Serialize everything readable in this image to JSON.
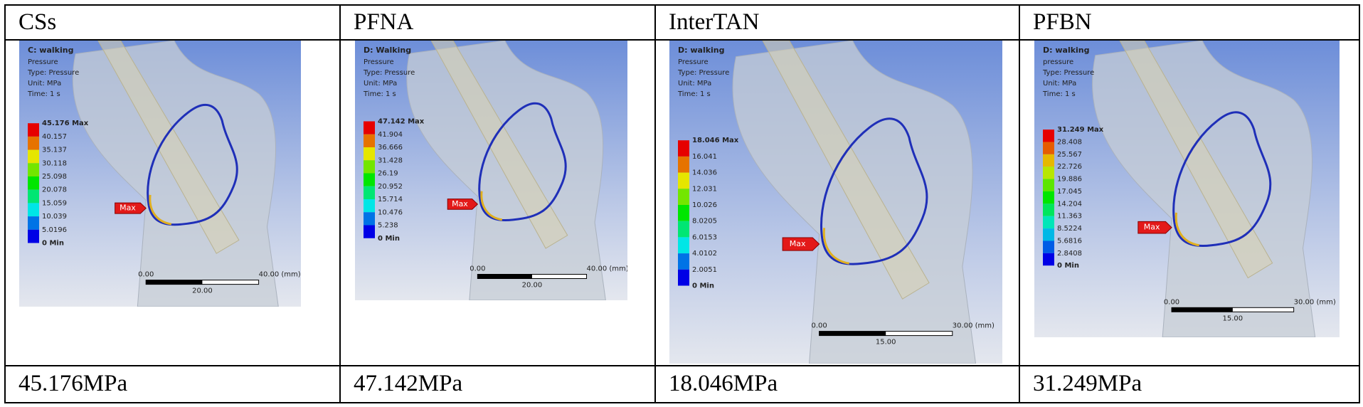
{
  "table": {
    "header": [
      "CSs",
      "PFNA",
      "InterTAN",
      "PFBN"
    ],
    "panels": [
      {
        "title": "C: walking",
        "lines": [
          "Pressure",
          "Type: Pressure",
          "Unit: MPa",
          "Time: 1 s"
        ],
        "legend": [
          "45.176 Max",
          "40.157",
          "35.137",
          "30.118",
          "25.098",
          "20.078",
          "15.059",
          "10.039",
          "5.0196",
          "0 Min"
        ],
        "marker": "Max",
        "scale": [
          "0.00",
          "40.00 (mm)",
          "20.00"
        ]
      },
      {
        "title": "D: Walking",
        "lines": [
          "Pressure",
          "Type: Pressure",
          "Unit: MPa",
          "Time: 1 s"
        ],
        "legend": [
          "47.142 Max",
          "41.904",
          "36.666",
          "31.428",
          "26.19",
          "20.952",
          "15.714",
          "10.476",
          "5.238",
          "0 Min"
        ],
        "marker": "Max",
        "scale": [
          "0.00",
          "40.00 (mm)",
          "20.00"
        ]
      },
      {
        "title": "D: walking",
        "lines": [
          "Pressure",
          "Type: Pressure",
          "Unit: MPa",
          "Time: 1 s"
        ],
        "legend": [
          "18.046 Max",
          "16.041",
          "14.036",
          "12.031",
          "10.026",
          "8.0205",
          "6.0153",
          "4.0102",
          "2.0051",
          "0 Min"
        ],
        "marker": "Max",
        "scale": [
          "0.00",
          "30.00 (mm)",
          "15.00"
        ]
      },
      {
        "title": "D: walking",
        "lines": [
          "pressure",
          "Type: Pressure",
          "Unit: MPa",
          "Time: 1 s"
        ],
        "legend": [
          "31.249 Max",
          "28.408",
          "25.567",
          "22.726",
          "19.886",
          "17.045",
          "14.204",
          "11.363",
          "8.5224",
          "5.6816",
          "2.8408",
          "0 Min"
        ],
        "marker": "Max",
        "scale": [
          "0.00",
          "30.00 (mm)",
          "15.00"
        ]
      }
    ],
    "values": [
      "45.176MPa",
      "47.142MPa",
      "18.046MPa",
      "31.249MPa"
    ]
  }
}
